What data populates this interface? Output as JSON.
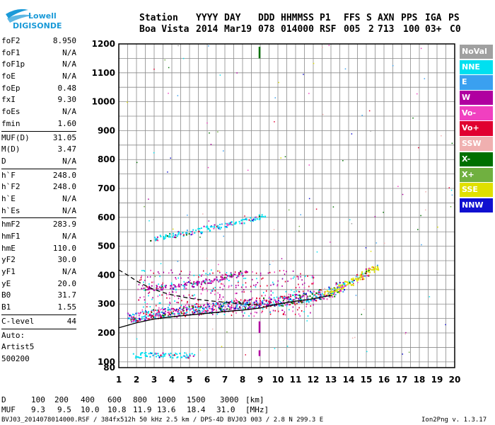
{
  "logo": {
    "line1": "Lowell",
    "line2": "DIGISONDE"
  },
  "header": {
    "labels": [
      "Station",
      "YYYY",
      "DAY",
      "DDD",
      "HHMMSS",
      "P1",
      "FFS",
      "S",
      "AXN",
      "PPS",
      "IGA",
      "PS"
    ],
    "values": [
      "Boa Vista",
      "2014",
      "Mar19",
      "078",
      "014000",
      "RSF",
      "005",
      "2",
      "713",
      "100",
      "03+",
      "C0"
    ]
  },
  "params": [
    {
      "group": [
        {
          "name": "foF2",
          "value": "8.950"
        },
        {
          "name": "foF1",
          "value": "N/A"
        },
        {
          "name": "foF1p",
          "value": "N/A"
        },
        {
          "name": "foE",
          "value": "N/A"
        },
        {
          "name": "foEp",
          "value": "0.48"
        },
        {
          "name": "fxI",
          "value": "9.30"
        },
        {
          "name": "foEs",
          "value": "N/A"
        },
        {
          "name": "fmin",
          "value": "1.60"
        }
      ]
    },
    {
      "group": [
        {
          "name": "MUF(D)",
          "value": "31.05"
        },
        {
          "name": "M(D)",
          "value": "3.47"
        },
        {
          "name": "D",
          "value": "N/A"
        }
      ]
    },
    {
      "group": [
        {
          "name": "h`F",
          "value": "248.0"
        },
        {
          "name": "h`F2",
          "value": "248.0"
        },
        {
          "name": "h`E",
          "value": "N/A"
        },
        {
          "name": "h`Es",
          "value": "N/A"
        }
      ]
    },
    {
      "group": [
        {
          "name": "hmF2",
          "value": "283.9"
        },
        {
          "name": "hmF1",
          "value": "N/A"
        },
        {
          "name": "hmE",
          "value": "110.0"
        },
        {
          "name": "yF2",
          "value": "30.0"
        },
        {
          "name": "yF1",
          "value": "N/A"
        },
        {
          "name": "yE",
          "value": "20.0"
        },
        {
          "name": "B0",
          "value": "31.7"
        },
        {
          "name": "B1",
          "value": "1.55"
        }
      ]
    },
    {
      "group": [
        {
          "name": "C-level",
          "value": "44"
        }
      ]
    }
  ],
  "autoscaling": {
    "line1": "Auto:",
    "line2": "Artist5",
    "line3": "500200"
  },
  "legend": [
    {
      "label": "NoVal",
      "color": "#a0a0a0"
    },
    {
      "label": "NNE",
      "color": "#00e0f0"
    },
    {
      "label": "E",
      "color": "#3aa0f0"
    },
    {
      "label": "W",
      "color": "#b000a0"
    },
    {
      "label": "Vo-",
      "color": "#f040c0"
    },
    {
      "label": "Vo+",
      "color": "#e00030"
    },
    {
      "label": "SSW",
      "color": "#f0b0b0"
    },
    {
      "label": "X-",
      "color": "#007000"
    },
    {
      "label": "X+",
      "color": "#70b040"
    },
    {
      "label": "SSE",
      "color": "#e0e000"
    },
    {
      "label": "NNW",
      "color": "#1010d0"
    }
  ],
  "muf_table": {
    "d_label": "D",
    "distances": [
      "100",
      "200",
      "400",
      "600",
      "800",
      "1000",
      "1500",
      "3000"
    ],
    "d_unit": "[km]",
    "muf_label": "MUF",
    "mufs": [
      "9.3",
      "9.5",
      "10.0",
      "10.8",
      "11.9",
      "13.6",
      "18.4",
      "31.0"
    ],
    "muf_unit": "[MHz]"
  },
  "footer": {
    "left": "BVJ03_2014078014000.RSF / 384fx512h 50 kHz 2.5 km / DPS-4D BVJ03 003 / 2.8 N 299.3 E",
    "right": "Ion2Png v. 1.3.17"
  },
  "chart_data": {
    "type": "scatter",
    "xlim": [
      1,
      20
    ],
    "ylim": [
      80,
      1200
    ],
    "x_ticks": [
      1,
      2,
      3,
      4,
      5,
      6,
      7,
      8,
      9,
      10,
      11,
      12,
      13,
      14,
      15,
      16,
      17,
      18,
      19,
      20
    ],
    "y_ticks": [
      80,
      100,
      200,
      300,
      400,
      500,
      600,
      700,
      800,
      900,
      1000,
      1100,
      1200
    ],
    "grid": true,
    "traces": [
      {
        "name": "O-trace F-layer",
        "color": "#e00030",
        "points": [
          [
            1.7,
            255
          ],
          [
            2.0,
            258
          ],
          [
            2.5,
            262
          ],
          [
            3.0,
            266
          ],
          [
            3.5,
            270
          ],
          [
            4.0,
            274
          ],
          [
            4.5,
            277
          ],
          [
            5.0,
            280
          ],
          [
            5.5,
            283
          ],
          [
            6.0,
            287
          ],
          [
            6.5,
            290
          ],
          [
            7.0,
            293
          ],
          [
            7.5,
            297
          ],
          [
            8.0,
            300
          ],
          [
            8.5,
            303
          ],
          [
            9.0,
            306
          ],
          [
            9.5,
            309
          ],
          [
            10.0,
            312
          ],
          [
            10.5,
            316
          ],
          [
            11.0,
            320
          ],
          [
            11.5,
            324
          ],
          [
            12.0,
            330
          ],
          [
            12.5,
            336
          ],
          [
            13.0,
            344
          ],
          [
            13.5,
            360
          ]
        ]
      },
      {
        "name": "X-trace F-layer",
        "color": "#e0e000",
        "points": [
          [
            12.8,
            340
          ],
          [
            13.2,
            348
          ],
          [
            13.6,
            360
          ],
          [
            14.0,
            372
          ],
          [
            14.3,
            384
          ],
          [
            14.6,
            395
          ],
          [
            14.9,
            406
          ],
          [
            15.2,
            418
          ],
          [
            15.5,
            428
          ]
        ]
      },
      {
        "name": "2F multiple",
        "color": "#b000a0",
        "points": [
          [
            2.5,
            355
          ],
          [
            3.0,
            358
          ],
          [
            3.5,
            360
          ],
          [
            4.0,
            362
          ],
          [
            4.5,
            366
          ],
          [
            5.0,
            370
          ],
          [
            5.5,
            375
          ],
          [
            6.0,
            381
          ],
          [
            6.5,
            388
          ],
          [
            7.0,
            395
          ],
          [
            7.5,
            402
          ],
          [
            8.0,
            408
          ]
        ]
      },
      {
        "name": "3F multiple",
        "color": "#00e0f0",
        "points": [
          [
            3.0,
            530
          ],
          [
            3.5,
            535
          ],
          [
            4.0,
            540
          ],
          [
            4.5,
            545
          ],
          [
            5.0,
            550
          ],
          [
            5.5,
            556
          ],
          [
            6.0,
            563
          ],
          [
            6.5,
            570
          ],
          [
            7.0,
            576
          ],
          [
            7.5,
            582
          ],
          [
            8.0,
            590
          ],
          [
            8.5,
            597
          ],
          [
            9.0,
            604
          ]
        ]
      },
      {
        "name": "Es low",
        "color": "#00e0f0",
        "points": [
          [
            2.0,
            125
          ],
          [
            2.5,
            125
          ],
          [
            3.0,
            125
          ],
          [
            3.5,
            125
          ],
          [
            4.0,
            125
          ],
          [
            4.5,
            125
          ],
          [
            5.0,
            125
          ]
        ]
      }
    ],
    "profile_lines": [
      {
        "name": "bottomside profile",
        "style": "solid",
        "points": [
          [
            1.0,
            218
          ],
          [
            2,
            235
          ],
          [
            3,
            248
          ],
          [
            4,
            256
          ],
          [
            5,
            262
          ],
          [
            6,
            268
          ],
          [
            7,
            274
          ],
          [
            8,
            279
          ],
          [
            9,
            286
          ],
          [
            10,
            300
          ],
          [
            11,
            310
          ],
          [
            12,
            318
          ],
          [
            13,
            330
          ]
        ]
      },
      {
        "name": "model profile",
        "style": "dashed",
        "points": [
          [
            1.0,
            418
          ],
          [
            1.5,
            400
          ],
          [
            2.0,
            380
          ],
          [
            2.5,
            364
          ],
          [
            3.0,
            350
          ],
          [
            3.5,
            340
          ],
          [
            4.0,
            332
          ],
          [
            5.0,
            320
          ],
          [
            6.0,
            312
          ],
          [
            7.0,
            306
          ],
          [
            8.0,
            300
          ],
          [
            9.0,
            296
          ]
        ]
      }
    ],
    "fof2_marker": {
      "x": 8.95,
      "color": "#b000a0"
    }
  }
}
